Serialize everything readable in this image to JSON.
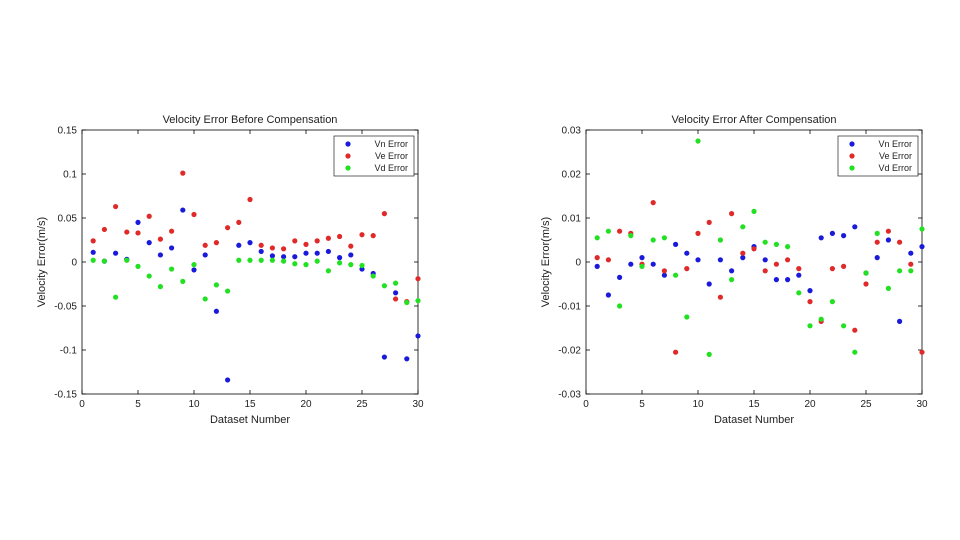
{
  "chart_data": [
    {
      "type": "scatter",
      "title": "Velocity Error Before Compensation",
      "xlabel": "Dataset Number",
      "ylabel": "Velocity Error(m/s)",
      "xlim": [
        0,
        30
      ],
      "ylim": [
        -0.15,
        0.15
      ],
      "xticks": [
        0,
        5,
        10,
        15,
        20,
        25,
        30
      ],
      "xtick_labels": [
        "0",
        "5",
        "10",
        "15",
        "20",
        "25",
        "30"
      ],
      "yticks": [
        -0.15,
        -0.1,
        -0.05,
        0,
        0.05,
        0.1,
        0.15
      ],
      "ytick_labels": [
        "-0.15",
        "-0.1",
        "-0.05",
        "0",
        "0.05",
        "0.1",
        "0.15"
      ],
      "legend_position": "top-right",
      "x": [
        1,
        2,
        3,
        4,
        5,
        6,
        7,
        8,
        9,
        10,
        11,
        12,
        13,
        14,
        15,
        16,
        17,
        18,
        19,
        20,
        21,
        22,
        23,
        24,
        25,
        26,
        27,
        28,
        29,
        30
      ],
      "series": [
        {
          "name": "Vn Error",
          "color": "#1a1adb",
          "values": [
            0.011,
            0.001,
            0.01,
            0.003,
            0.045,
            0.022,
            0.008,
            0.016,
            0.059,
            -0.009,
            0.008,
            -0.056,
            -0.134,
            0.019,
            0.022,
            0.012,
            0.007,
            0.006,
            0.006,
            0.01,
            0.01,
            0.012,
            0.005,
            0.008,
            -0.008,
            -0.013,
            -0.108,
            -0.035,
            -0.11,
            -0.084
          ]
        },
        {
          "name": "Ve Error",
          "color": "#e02a2a",
          "values": [
            0.024,
            0.037,
            0.063,
            0.034,
            0.033,
            0.052,
            0.026,
            0.035,
            0.101,
            0.054,
            0.019,
            0.022,
            0.039,
            0.045,
            0.071,
            0.019,
            0.016,
            0.015,
            0.024,
            0.02,
            0.024,
            0.027,
            0.029,
            0.018,
            0.031,
            0.03,
            0.055,
            -0.042,
            -0.045,
            -0.019
          ]
        },
        {
          "name": "Vd Error",
          "color": "#22e022",
          "values": [
            0.002,
            0.001,
            -0.04,
            0.002,
            -0.005,
            -0.016,
            -0.028,
            -0.008,
            -0.022,
            -0.003,
            -0.042,
            -0.026,
            -0.033,
            0.002,
            0.002,
            0.002,
            0.002,
            0.001,
            -0.002,
            -0.003,
            0.001,
            -0.01,
            -0.001,
            -0.003,
            -0.004,
            -0.016,
            -0.027,
            -0.024,
            -0.046,
            -0.044
          ]
        }
      ]
    },
    {
      "type": "scatter",
      "title": "Velocity Error After Compensation",
      "xlabel": "Dataset Number",
      "ylabel": "Velocity Error(m/s)",
      "xlim": [
        0,
        30
      ],
      "ylim": [
        -0.03,
        0.03
      ],
      "xticks": [
        0,
        5,
        10,
        15,
        20,
        25,
        30
      ],
      "xtick_labels": [
        "0",
        "5",
        "10",
        "15",
        "20",
        "25",
        "30"
      ],
      "yticks": [
        -0.03,
        -0.02,
        -0.01,
        0,
        0.01,
        0.02,
        0.03
      ],
      "ytick_labels": [
        "-0.03",
        "-0.02",
        "-0.01",
        "0",
        "0.01",
        "0.02",
        "0.03"
      ],
      "legend_position": "top-right",
      "x": [
        1,
        2,
        3,
        4,
        5,
        6,
        7,
        8,
        9,
        10,
        11,
        12,
        13,
        14,
        15,
        16,
        17,
        18,
        19,
        20,
        21,
        22,
        23,
        24,
        25,
        26,
        27,
        28,
        29,
        30
      ],
      "series": [
        {
          "name": "Vn Error",
          "color": "#1a1adb",
          "values": [
            -0.001,
            -0.0075,
            -0.0035,
            -0.0005,
            0.001,
            -0.0005,
            -0.003,
            0.004,
            0.002,
            0.0005,
            -0.005,
            0.0005,
            -0.002,
            0.001,
            0.0035,
            0.0005,
            -0.004,
            -0.004,
            -0.003,
            -0.0065,
            0.0055,
            0.0065,
            0.006,
            0.008,
            -0.0025,
            0.001,
            0.005,
            -0.0135,
            0.002,
            0.0035
          ]
        },
        {
          "name": "Ve Error",
          "color": "#e02a2a",
          "values": [
            0.001,
            0.0005,
            0.007,
            0.0065,
            -0.0005,
            0.0135,
            -0.002,
            -0.0205,
            -0.0015,
            0.0065,
            0.009,
            -0.008,
            0.011,
            0.002,
            0.003,
            -0.002,
            -0.0005,
            0.0005,
            -0.0015,
            -0.009,
            -0.0135,
            -0.0015,
            -0.001,
            -0.0155,
            -0.005,
            0.0045,
            0.007,
            0.0045,
            -0.0005,
            -0.0205
          ]
        },
        {
          "name": "Vd Error",
          "color": "#22e022",
          "values": [
            0.0055,
            0.007,
            -0.01,
            0.006,
            -0.001,
            0.005,
            0.0055,
            -0.003,
            -0.0125,
            0.0275,
            -0.021,
            0.005,
            -0.004,
            0.008,
            0.0115,
            0.0045,
            0.004,
            0.0035,
            -0.007,
            -0.0145,
            -0.013,
            -0.009,
            -0.0145,
            -0.0205,
            -0.0025,
            0.0065,
            -0.006,
            -0.002,
            -0.002,
            0.0075
          ]
        }
      ]
    }
  ]
}
